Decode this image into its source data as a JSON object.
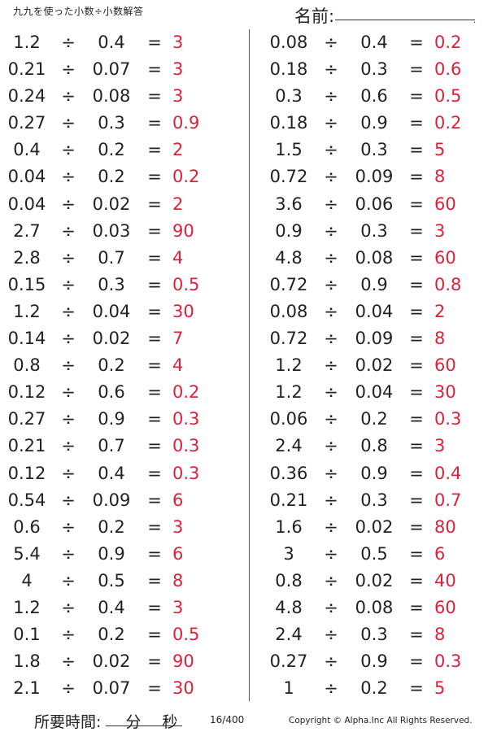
{
  "header": {
    "title": "九九を使った小数÷小数解答",
    "name_label": "名前:",
    "name_dot": "."
  },
  "left_problems": [
    {
      "a": "1.2",
      "op": "÷",
      "b": "0.4",
      "eq": "=",
      "ans": "3"
    },
    {
      "a": "0.21",
      "op": "÷",
      "b": "0.07",
      "eq": "=",
      "ans": "3"
    },
    {
      "a": "0.24",
      "op": "÷",
      "b": "0.08",
      "eq": "=",
      "ans": "3"
    },
    {
      "a": "0.27",
      "op": "÷",
      "b": "0.3",
      "eq": "=",
      "ans": "0.9"
    },
    {
      "a": "0.4",
      "op": "÷",
      "b": "0.2",
      "eq": "=",
      "ans": "2"
    },
    {
      "a": "0.04",
      "op": "÷",
      "b": "0.2",
      "eq": "=",
      "ans": "0.2"
    },
    {
      "a": "0.04",
      "op": "÷",
      "b": "0.02",
      "eq": "=",
      "ans": "2"
    },
    {
      "a": "2.7",
      "op": "÷",
      "b": "0.03",
      "eq": "=",
      "ans": "90"
    },
    {
      "a": "2.8",
      "op": "÷",
      "b": "0.7",
      "eq": "=",
      "ans": "4"
    },
    {
      "a": "0.15",
      "op": "÷",
      "b": "0.3",
      "eq": "=",
      "ans": "0.5"
    },
    {
      "a": "1.2",
      "op": "÷",
      "b": "0.04",
      "eq": "=",
      "ans": "30"
    },
    {
      "a": "0.14",
      "op": "÷",
      "b": "0.02",
      "eq": "=",
      "ans": "7"
    },
    {
      "a": "0.8",
      "op": "÷",
      "b": "0.2",
      "eq": "=",
      "ans": "4"
    },
    {
      "a": "0.12",
      "op": "÷",
      "b": "0.6",
      "eq": "=",
      "ans": "0.2"
    },
    {
      "a": "0.27",
      "op": "÷",
      "b": "0.9",
      "eq": "=",
      "ans": "0.3"
    },
    {
      "a": "0.21",
      "op": "÷",
      "b": "0.7",
      "eq": "=",
      "ans": "0.3"
    },
    {
      "a": "0.12",
      "op": "÷",
      "b": "0.4",
      "eq": "=",
      "ans": "0.3"
    },
    {
      "a": "0.54",
      "op": "÷",
      "b": "0.09",
      "eq": "=",
      "ans": "6"
    },
    {
      "a": "0.6",
      "op": "÷",
      "b": "0.2",
      "eq": "=",
      "ans": "3"
    },
    {
      "a": "5.4",
      "op": "÷",
      "b": "0.9",
      "eq": "=",
      "ans": "6"
    },
    {
      "a": "4",
      "op": "÷",
      "b": "0.5",
      "eq": "=",
      "ans": "8"
    },
    {
      "a": "1.2",
      "op": "÷",
      "b": "0.4",
      "eq": "=",
      "ans": "3"
    },
    {
      "a": "0.1",
      "op": "÷",
      "b": "0.2",
      "eq": "=",
      "ans": "0.5"
    },
    {
      "a": "1.8",
      "op": "÷",
      "b": "0.02",
      "eq": "=",
      "ans": "90"
    },
    {
      "a": "2.1",
      "op": "÷",
      "b": "0.07",
      "eq": "=",
      "ans": "30"
    }
  ],
  "right_problems": [
    {
      "a": "0.08",
      "op": "÷",
      "b": "0.4",
      "eq": "=",
      "ans": "0.2"
    },
    {
      "a": "0.18",
      "op": "÷",
      "b": "0.3",
      "eq": "=",
      "ans": "0.6"
    },
    {
      "a": "0.3",
      "op": "÷",
      "b": "0.6",
      "eq": "=",
      "ans": "0.5"
    },
    {
      "a": "0.18",
      "op": "÷",
      "b": "0.9",
      "eq": "=",
      "ans": "0.2"
    },
    {
      "a": "1.5",
      "op": "÷",
      "b": "0.3",
      "eq": "=",
      "ans": "5"
    },
    {
      "a": "0.72",
      "op": "÷",
      "b": "0.09",
      "eq": "=",
      "ans": "8"
    },
    {
      "a": "3.6",
      "op": "÷",
      "b": "0.06",
      "eq": "=",
      "ans": "60"
    },
    {
      "a": "0.9",
      "op": "÷",
      "b": "0.3",
      "eq": "=",
      "ans": "3"
    },
    {
      "a": "4.8",
      "op": "÷",
      "b": "0.08",
      "eq": "=",
      "ans": "60"
    },
    {
      "a": "0.72",
      "op": "÷",
      "b": "0.9",
      "eq": "=",
      "ans": "0.8"
    },
    {
      "a": "0.08",
      "op": "÷",
      "b": "0.04",
      "eq": "=",
      "ans": "2"
    },
    {
      "a": "0.72",
      "op": "÷",
      "b": "0.09",
      "eq": "=",
      "ans": "8"
    },
    {
      "a": "1.2",
      "op": "÷",
      "b": "0.02",
      "eq": "=",
      "ans": "60"
    },
    {
      "a": "1.2",
      "op": "÷",
      "b": "0.04",
      "eq": "=",
      "ans": "30"
    },
    {
      "a": "0.06",
      "op": "÷",
      "b": "0.2",
      "eq": "=",
      "ans": "0.3"
    },
    {
      "a": "2.4",
      "op": "÷",
      "b": "0.8",
      "eq": "=",
      "ans": "3"
    },
    {
      "a": "0.36",
      "op": "÷",
      "b": "0.9",
      "eq": "=",
      "ans": "0.4"
    },
    {
      "a": "0.21",
      "op": "÷",
      "b": "0.3",
      "eq": "=",
      "ans": "0.7"
    },
    {
      "a": "1.6",
      "op": "÷",
      "b": "0.02",
      "eq": "=",
      "ans": "80"
    },
    {
      "a": "3",
      "op": "÷",
      "b": "0.5",
      "eq": "=",
      "ans": "6"
    },
    {
      "a": "0.8",
      "op": "÷",
      "b": "0.02",
      "eq": "=",
      "ans": "40"
    },
    {
      "a": "4.8",
      "op": "÷",
      "b": "0.08",
      "eq": "=",
      "ans": "60"
    },
    {
      "a": "2.4",
      "op": "÷",
      "b": "0.3",
      "eq": "=",
      "ans": "8"
    },
    {
      "a": "0.27",
      "op": "÷",
      "b": "0.9",
      "eq": "=",
      "ans": "0.3"
    },
    {
      "a": "1",
      "op": "÷",
      "b": "0.2",
      "eq": "=",
      "ans": "5"
    }
  ],
  "footer": {
    "time_label": "所要時間:",
    "minutes_label": "分",
    "seconds_label": "秒",
    "page": "16/400",
    "copyright": "Copyright © Alpha.Inc All Rights Reserved."
  },
  "colors": {
    "answer": "#e0203a",
    "text": "#222222"
  }
}
